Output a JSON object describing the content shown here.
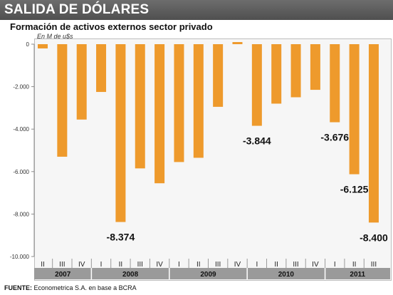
{
  "header": {
    "title": "SALIDA DE DÓLARES"
  },
  "subtitle": "Formación de activos externos sector privado",
  "unit": "En M de u$s",
  "footer": {
    "label": "FUENTE:",
    "text": "Econometrica S.A. en base a BCRA"
  },
  "colors": {
    "bar": "#ee9a2c",
    "year_band": "#9a9a9a",
    "header": "#5a5a5a"
  },
  "chart_data": {
    "type": "bar",
    "title": "Formación de activos externos sector privado",
    "ylabel": "En M de u$s",
    "ylim": [
      -10000,
      0
    ],
    "y_ticks": [
      0,
      -2000,
      -4000,
      -6000,
      -8000,
      -10000
    ],
    "y_tick_labels": [
      "0",
      "-2.000",
      "-4.000",
      "-6.000",
      "-8.000",
      "-10.000"
    ],
    "categories": [
      "II",
      "III",
      "IV",
      "I",
      "II",
      "III",
      "IV",
      "I",
      "II",
      "III",
      "IV",
      "I",
      "II",
      "III",
      "IV",
      "I",
      "II",
      "III"
    ],
    "years": [
      {
        "label": "2007",
        "span": 3
      },
      {
        "label": "2008",
        "span": 4
      },
      {
        "label": "2009",
        "span": 4
      },
      {
        "label": "2010",
        "span": 4
      },
      {
        "label": "2011",
        "span": 3
      }
    ],
    "values": [
      -200,
      -5300,
      -3550,
      -2250,
      -8374,
      -5850,
      -6550,
      -5550,
      -5350,
      -2950,
      100,
      -3844,
      -2800,
      -2500,
      -2150,
      -3676,
      -6125,
      -8400
    ],
    "data_labels": [
      {
        "index": 4,
        "text": "-8.374"
      },
      {
        "index": 11,
        "text": "-3.844"
      },
      {
        "index": 15,
        "text": "-3.676"
      },
      {
        "index": 16,
        "text": "-6.125"
      },
      {
        "index": 17,
        "text": "-8.400"
      }
    ],
    "grid": false
  }
}
